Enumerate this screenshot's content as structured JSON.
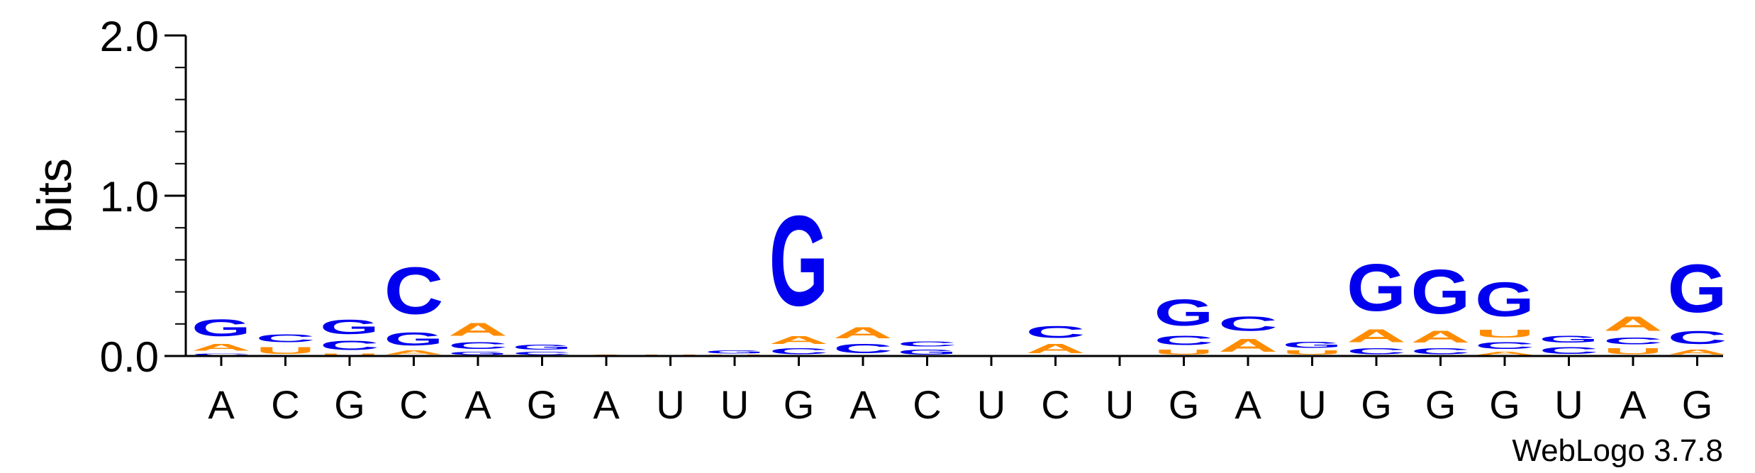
{
  "chart_data": {
    "type": "sequence-logo",
    "ylabel": "bits",
    "ylim": [
      0,
      2
    ],
    "yticks": [
      "0.0",
      "1.0",
      "2.0"
    ],
    "grid": false,
    "credit": "WebLogo 3.7.8",
    "colors": {
      "A": "#ff8c00",
      "U": "#ff8c00",
      "C": "#0000ee",
      "G": "#0000ee"
    },
    "positions": [
      {
        "label": "A",
        "stack": [
          {
            "letter": "C",
            "bits": 0.02
          },
          {
            "letter": "A",
            "bits": 0.07
          },
          {
            "letter": "G",
            "bits": 0.17
          }
        ]
      },
      {
        "label": "C",
        "stack": [
          {
            "letter": "U",
            "bits": 0.07
          },
          {
            "letter": "C",
            "bits": 0.08
          }
        ]
      },
      {
        "label": "G",
        "stack": [
          {
            "letter": "U",
            "bits": 0.02
          },
          {
            "letter": "C",
            "bits": 0.09
          },
          {
            "letter": "G",
            "bits": 0.14
          }
        ]
      },
      {
        "label": "C",
        "stack": [
          {
            "letter": "A",
            "bits": 0.04
          },
          {
            "letter": "G",
            "bits": 0.13
          },
          {
            "letter": "C",
            "bits": 0.47
          }
        ]
      },
      {
        "label": "A",
        "stack": [
          {
            "letter": "G",
            "bits": 0.03
          },
          {
            "letter": "C",
            "bits": 0.07
          },
          {
            "letter": "A",
            "bits": 0.13
          }
        ]
      },
      {
        "label": "G",
        "stack": [
          {
            "letter": "C",
            "bits": 0.03
          },
          {
            "letter": "G",
            "bits": 0.05
          }
        ]
      },
      {
        "label": "A",
        "stack": [
          {
            "letter": "A",
            "bits": 0.01
          }
        ]
      },
      {
        "label": "U",
        "stack": [
          {
            "letter": "U",
            "bits": 0.01
          }
        ]
      },
      {
        "label": "U",
        "stack": [
          {
            "letter": "U",
            "bits": 0.01
          },
          {
            "letter": "G",
            "bits": 0.03
          }
        ]
      },
      {
        "label": "G",
        "stack": [
          {
            "letter": "C",
            "bits": 0.06
          },
          {
            "letter": "A",
            "bits": 0.08
          },
          {
            "letter": "G",
            "bits": 0.9
          }
        ]
      },
      {
        "label": "A",
        "stack": [
          {
            "letter": "C",
            "bits": 0.09
          },
          {
            "letter": "A",
            "bits": 0.11
          }
        ]
      },
      {
        "label": "C",
        "stack": [
          {
            "letter": "G",
            "bits": 0.05
          },
          {
            "letter": "C",
            "bits": 0.05
          }
        ]
      },
      {
        "label": "U",
        "stack": []
      },
      {
        "label": "C",
        "stack": [
          {
            "letter": "A",
            "bits": 0.09
          },
          {
            "letter": "C",
            "bits": 0.12
          }
        ]
      },
      {
        "label": "U",
        "stack": []
      },
      {
        "label": "G",
        "stack": [
          {
            "letter": "U",
            "bits": 0.05
          },
          {
            "letter": "C",
            "bits": 0.09
          },
          {
            "letter": "G",
            "bits": 0.26
          }
        ]
      },
      {
        "label": "A",
        "stack": [
          {
            "letter": "A",
            "bits": 0.13
          },
          {
            "letter": "C",
            "bits": 0.14
          }
        ]
      },
      {
        "label": "U",
        "stack": [
          {
            "letter": "U",
            "bits": 0.04
          },
          {
            "letter": "G",
            "bits": 0.06
          }
        ]
      },
      {
        "label": "G",
        "stack": [
          {
            "letter": "C",
            "bits": 0.06
          },
          {
            "letter": "A",
            "bits": 0.13
          },
          {
            "letter": "G",
            "bits": 0.47
          }
        ]
      },
      {
        "label": "G",
        "stack": [
          {
            "letter": "C",
            "bits": 0.06
          },
          {
            "letter": "A",
            "bits": 0.12
          },
          {
            "letter": "G",
            "bits": 0.44
          }
        ]
      },
      {
        "label": "G",
        "stack": [
          {
            "letter": "A",
            "bits": 0.03
          },
          {
            "letter": "C",
            "bits": 0.07
          },
          {
            "letter": "U",
            "bits": 0.08
          },
          {
            "letter": "G",
            "bits": 0.34
          }
        ]
      },
      {
        "label": "U",
        "stack": [
          {
            "letter": "C",
            "bits": 0.07
          },
          {
            "letter": "G",
            "bits": 0.07
          }
        ]
      },
      {
        "label": "A",
        "stack": [
          {
            "letter": "U",
            "bits": 0.06
          },
          {
            "letter": "C",
            "bits": 0.07
          },
          {
            "letter": "A",
            "bits": 0.14
          }
        ]
      },
      {
        "label": "G",
        "stack": [
          {
            "letter": "A",
            "bits": 0.05
          },
          {
            "letter": "C",
            "bits": 0.13
          },
          {
            "letter": "G",
            "bits": 0.48
          }
        ]
      }
    ]
  }
}
